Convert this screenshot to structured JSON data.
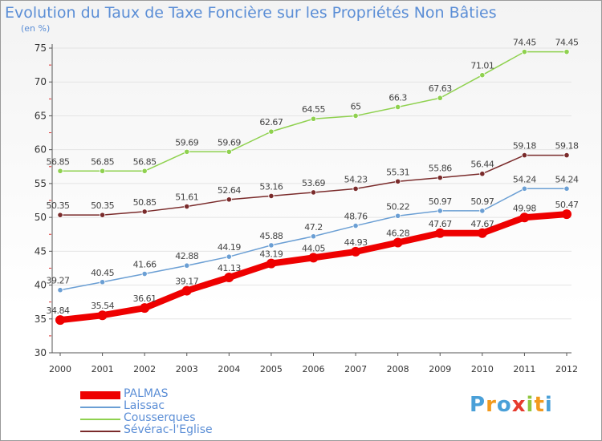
{
  "chart_data": {
    "type": "line",
    "title": "Evolution du Taux de Taxe Foncière sur les Propriétés Non Bâties",
    "ylabel": "(en %)",
    "xlabel": "",
    "ylim": [
      30,
      75
    ],
    "yticks": [
      30,
      35,
      40,
      45,
      50,
      55,
      60,
      65,
      70,
      75
    ],
    "categories": [
      "2000",
      "2001",
      "2002",
      "2003",
      "2004",
      "2005",
      "2006",
      "2007",
      "2008",
      "2009",
      "2010",
      "2011",
      "2012"
    ],
    "legend_position": "bottom-left",
    "series": [
      {
        "name": "Cousserques",
        "color": "#8fd14f",
        "values": [
          56.85,
          56.85,
          56.85,
          59.69,
          59.69,
          62.67,
          64.55,
          65,
          66.3,
          67.63,
          71.01,
          74.45,
          74.45
        ],
        "labels": [
          "56.85",
          "56.85",
          "56.85",
          "59.69",
          "59.69",
          "62.67",
          "64.55",
          "65",
          "66.3",
          "67.63",
          "71.01",
          "74.45",
          "74.45"
        ]
      },
      {
        "name": "Sévérac-l'Eglise",
        "color": "#7a2b2b",
        "values": [
          50.35,
          50.35,
          50.85,
          51.61,
          52.64,
          53.16,
          53.69,
          54.23,
          55.31,
          55.86,
          56.44,
          59.18,
          59.18
        ],
        "labels": [
          "50.35",
          "50.35",
          "50.85",
          "51.61",
          "52.64",
          "53.16",
          "53.69",
          "54.23",
          "55.31",
          "55.86",
          "56.44",
          "59.18",
          "59.18"
        ]
      },
      {
        "name": "Laissac",
        "color": "#6b9fd4",
        "values": [
          39.27,
          40.45,
          41.66,
          42.88,
          44.19,
          45.88,
          47.2,
          48.76,
          50.22,
          50.97,
          50.97,
          54.24,
          54.24
        ],
        "labels": [
          "39.27",
          "40.45",
          "41.66",
          "42.88",
          "44.19",
          "45.88",
          "47.2",
          "48.76",
          "50.22",
          "50.97",
          "50.97",
          "54.24",
          "54.24"
        ]
      },
      {
        "name": "PALMAS",
        "color": "#ee0000",
        "values": [
          34.84,
          35.54,
          36.61,
          39.17,
          41.13,
          43.19,
          44.05,
          44.93,
          46.28,
          47.67,
          47.67,
          49.98,
          50.47
        ],
        "labels": [
          "34.84",
          "35.54",
          "36.61",
          "39.17",
          "41.13",
          "43.19",
          "44.05",
          "44.93",
          "46.28",
          "47.67",
          "47.67",
          "49.98",
          "50.47"
        ]
      }
    ]
  },
  "legend": {
    "items": [
      {
        "label": "PALMAS",
        "color": "#ee0000"
      },
      {
        "label": "Laissac",
        "color": "#6b9fd4"
      },
      {
        "label": "Cousserques",
        "color": "#8fd14f"
      },
      {
        "label": "Sévérac-l'Eglise",
        "color": "#7a2b2b"
      }
    ]
  },
  "logo": {
    "letters": [
      "P",
      "r",
      "o",
      "x",
      "i",
      "t",
      "i"
    ],
    "colors": [
      "#4aa0d8",
      "#f29a1e",
      "#4aa0d8",
      "#e63b2e",
      "#8fc63f",
      "#f29a1e",
      "#4aa0d8"
    ]
  }
}
